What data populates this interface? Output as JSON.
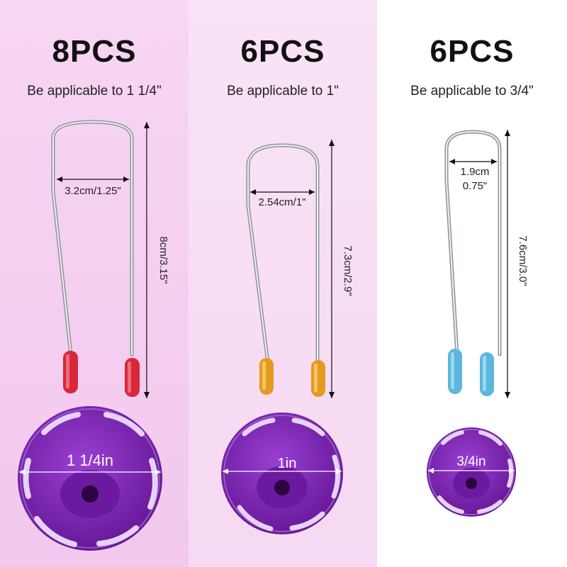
{
  "panels": [
    {
      "count": "8PCS",
      "applies": "Be applicable to 1 1/4\"",
      "width_label": "3.2cm/1.25\"",
      "length_label": "8cm/3.15\"",
      "disc_label": "1 1/4in",
      "tip_color": "#d8273b"
    },
    {
      "count": "6PCS",
      "applies": "Be applicable to 1\"",
      "width_label": "2.54cm/1\"",
      "length_label": "7.3cm/2.9\"",
      "disc_label": "1in",
      "tip_color": "#e59a1c"
    },
    {
      "count": "6PCS",
      "applies": "Be applicable to 3/4\"",
      "width_label_line1": "1.9cm",
      "width_label_line2": "0.75\"",
      "length_label": "7.6cm/3.0\"",
      "disc_label": "3/4in",
      "tip_color": "#5bb7dc"
    }
  ],
  "colors": {
    "disc_purple": "#7a1fb0",
    "wire": "#c9ccd1"
  }
}
